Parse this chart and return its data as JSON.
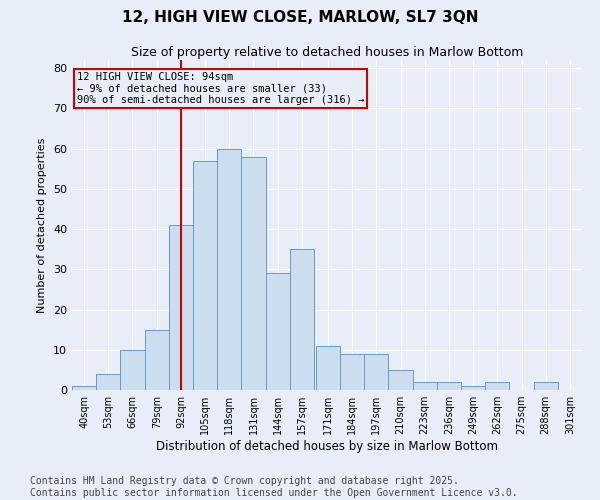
{
  "title": "12, HIGH VIEW CLOSE, MARLOW, SL7 3QN",
  "subtitle": "Size of property relative to detached houses in Marlow Bottom",
  "xlabel": "Distribution of detached houses by size in Marlow Bottom",
  "ylabel": "Number of detached properties",
  "bar_color": "#ccddf0",
  "bar_edge_color": "#6699cc",
  "bg_color": "#e8eef8",
  "vline_x": 92,
  "vline_color": "#cc0000",
  "annotation_text": "12 HIGH VIEW CLOSE: 94sqm\n← 9% of detached houses are smaller (33)\n90% of semi-detached houses are larger (316) →",
  "annotation_box_color": "#cc0000",
  "categories": [
    "40sqm",
    "53sqm",
    "66sqm",
    "79sqm",
    "92sqm",
    "105sqm",
    "118sqm",
    "131sqm",
    "144sqm",
    "157sqm",
    "171sqm",
    "184sqm",
    "197sqm",
    "210sqm",
    "223sqm",
    "236sqm",
    "249sqm",
    "262sqm",
    "275sqm",
    "288sqm",
    "301sqm"
  ],
  "bin_edges": [
    33.5,
    46.5,
    59.5,
    72.5,
    85.5,
    98.5,
    111.5,
    124.5,
    137.5,
    150.5,
    164.5,
    177.5,
    190.5,
    203.5,
    216.5,
    229.5,
    242.5,
    255.5,
    268.5,
    281.5,
    294.5,
    307.5
  ],
  "values": [
    1,
    4,
    10,
    15,
    41,
    57,
    60,
    58,
    29,
    35,
    11,
    9,
    9,
    5,
    2,
    2,
    1,
    2,
    0,
    2,
    0
  ],
  "ylim": [
    0,
    82
  ],
  "yticks": [
    0,
    10,
    20,
    30,
    40,
    50,
    60,
    70,
    80
  ],
  "footer": "Contains HM Land Registry data © Crown copyright and database right 2025.\nContains public sector information licensed under the Open Government Licence v3.0.",
  "footer_fontsize": 7,
  "title_fontsize": 11,
  "subtitle_fontsize": 9
}
